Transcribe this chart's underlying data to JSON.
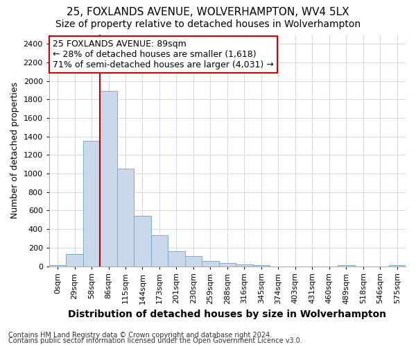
{
  "title": "25, FOXLANDS AVENUE, WOLVERHAMPTON, WV4 5LX",
  "subtitle": "Size of property relative to detached houses in Wolverhampton",
  "xlabel": "Distribution of detached houses by size in Wolverhampton",
  "ylabel": "Number of detached properties",
  "footnote1": "Contains HM Land Registry data © Crown copyright and database right 2024.",
  "footnote2": "Contains public sector information licensed under the Open Government Licence v3.0.",
  "annotation_line1": "25 FOXLANDS AVENUE: 89sqm",
  "annotation_line2": "← 28% of detached houses are smaller (1,618)",
  "annotation_line3": "71% of semi-detached houses are larger (4,031) →",
  "bar_color": "#c9d9eb",
  "bar_edge_color": "#7aaacb",
  "vline_color": "#cc0000",
  "vline_bin_index": 3,
  "categories": [
    "0sqm",
    "29sqm",
    "58sqm",
    "86sqm",
    "115sqm",
    "144sqm",
    "173sqm",
    "201sqm",
    "230sqm",
    "259sqm",
    "288sqm",
    "316sqm",
    "345sqm",
    "374sqm",
    "403sqm",
    "431sqm",
    "460sqm",
    "489sqm",
    "518sqm",
    "546sqm",
    "575sqm"
  ],
  "values": [
    15,
    130,
    1350,
    1890,
    1050,
    545,
    335,
    165,
    110,
    55,
    35,
    20,
    10,
    0,
    0,
    0,
    0,
    10,
    0,
    0,
    10
  ],
  "ylim": [
    0,
    2500
  ],
  "yticks": [
    0,
    200,
    400,
    600,
    800,
    1000,
    1200,
    1400,
    1600,
    1800,
    2000,
    2200,
    2400
  ],
  "background_color": "#ffffff",
  "axes_background": "#ffffff",
  "title_fontsize": 11,
  "subtitle_fontsize": 10,
  "xlabel_fontsize": 10,
  "ylabel_fontsize": 9,
  "tick_fontsize": 8,
  "annotation_fontsize": 9,
  "footnote_fontsize": 7
}
